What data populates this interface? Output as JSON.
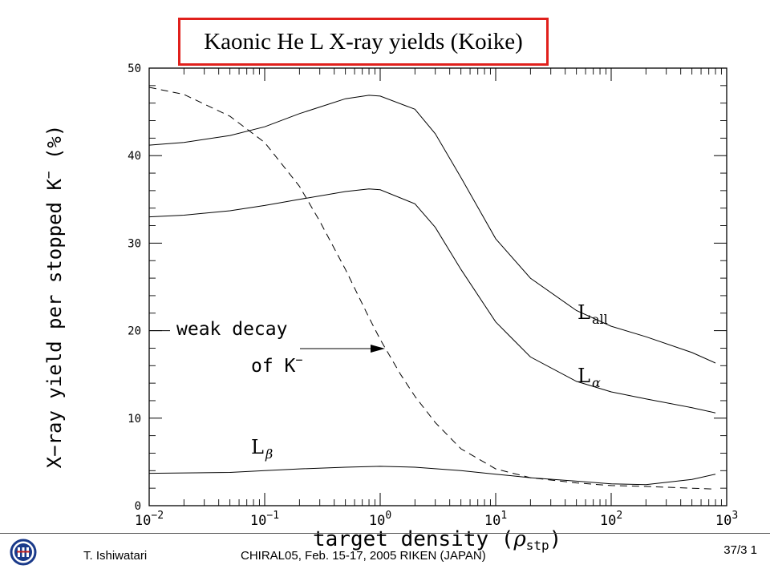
{
  "slide": {
    "title": "Kaonic He L X-ray yields (Koike)",
    "footer_author": "T. Ishiwatari",
    "footer_conference": "CHIRAL05, Feb. 15-17, 2005 RIKEN (JAPAN)",
    "page_number": "37/3 1"
  },
  "chart_data": {
    "type": "line",
    "xscale": "log",
    "xlim": [
      0.01,
      1000
    ],
    "ylim": [
      0,
      50
    ],
    "xlabel_main": "target density (",
    "xlabel_sym": "ρ",
    "xlabel_sub": "stp",
    "xlabel_end": ")",
    "ylabel": "X−ray yield per stopped K",
    "ylabel_sup": "−",
    "ylabel_end": " (%)",
    "y_ticks": [
      "0",
      "10",
      "20",
      "30",
      "40",
      "50"
    ],
    "y_tick_values": [
      0,
      10,
      20,
      30,
      40,
      50
    ],
    "x_tick_values": [
      0.01,
      0.1,
      1,
      10,
      100,
      1000
    ],
    "x_tick_labels": [
      {
        "base": "10",
        "exp": "−2"
      },
      {
        "base": "10",
        "exp": "−1"
      },
      {
        "base": "10",
        "exp": "0"
      },
      {
        "base": "10",
        "exp": "1"
      },
      {
        "base": "10",
        "exp": "2"
      },
      {
        "base": "10",
        "exp": "3"
      }
    ],
    "series": [
      {
        "name": "L",
        "name_sub": "all",
        "style": "solid",
        "x": [
          0.01,
          0.02,
          0.05,
          0.1,
          0.2,
          0.5,
          0.8,
          1,
          2,
          3,
          5,
          10,
          20,
          50,
          100,
          200,
          500,
          800
        ],
        "y": [
          41.2,
          41.5,
          42.3,
          43.3,
          44.8,
          46.5,
          46.9,
          46.8,
          45.3,
          42.5,
          37.5,
          30.5,
          26.0,
          22.3,
          20.5,
          19.3,
          17.5,
          16.3
        ]
      },
      {
        "name": "L",
        "name_sub": "α",
        "style": "solid",
        "x": [
          0.01,
          0.02,
          0.05,
          0.1,
          0.2,
          0.5,
          0.8,
          1,
          2,
          3,
          5,
          10,
          20,
          50,
          100,
          200,
          500,
          800
        ],
        "y": [
          33.0,
          33.2,
          33.7,
          34.3,
          35.0,
          35.9,
          36.2,
          36.1,
          34.5,
          31.8,
          27.0,
          21.0,
          17.0,
          14.2,
          13.0,
          12.2,
          11.2,
          10.6
        ]
      },
      {
        "name": "L",
        "name_sub": "β",
        "style": "solid",
        "x": [
          0.01,
          0.05,
          0.1,
          0.2,
          0.5,
          1,
          2,
          5,
          10,
          20,
          50,
          100,
          200,
          500,
          800
        ],
        "y": [
          3.7,
          3.8,
          4.0,
          4.2,
          4.4,
          4.5,
          4.4,
          4.0,
          3.6,
          3.2,
          2.8,
          2.5,
          2.4,
          3.0,
          3.6
        ]
      },
      {
        "style": "dashed",
        "x": [
          0.01,
          0.02,
          0.05,
          0.1,
          0.2,
          0.3,
          0.5,
          0.8,
          1,
          1.5,
          2,
          3,
          5,
          10,
          20,
          50,
          100,
          200,
          500,
          800
        ],
        "y": [
          47.8,
          47.0,
          44.5,
          41.5,
          36.5,
          32.5,
          27.0,
          21.5,
          19.0,
          15.0,
          12.5,
          9.5,
          6.5,
          4.2,
          3.2,
          2.6,
          2.3,
          2.2,
          2.0,
          1.9
        ]
      }
    ],
    "annotation": {
      "line1": "weak decay",
      "line2_text": "of K",
      "line2_sup": "−"
    }
  }
}
